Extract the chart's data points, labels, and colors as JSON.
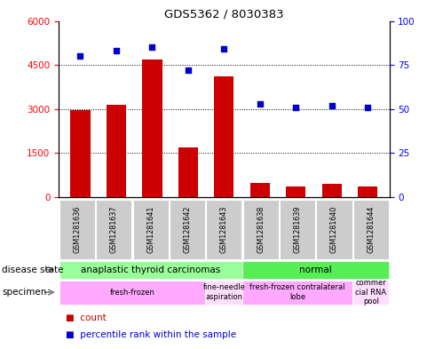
{
  "title": "GDS5362 / 8030383",
  "samples": [
    "GSM1281636",
    "GSM1281637",
    "GSM1281641",
    "GSM1281642",
    "GSM1281643",
    "GSM1281638",
    "GSM1281639",
    "GSM1281640",
    "GSM1281644"
  ],
  "counts": [
    2950,
    3150,
    4700,
    1700,
    4100,
    500,
    350,
    450,
    350
  ],
  "percentiles": [
    80,
    83,
    85,
    72,
    84,
    53,
    51,
    52,
    51
  ],
  "ylim_left": [
    0,
    6000
  ],
  "ylim_right": [
    0,
    100
  ],
  "yticks_left": [
    0,
    1500,
    3000,
    4500,
    6000
  ],
  "yticks_right": [
    0,
    25,
    50,
    75,
    100
  ],
  "bar_color": "#cc0000",
  "dot_color": "#0000cc",
  "disease_state_groups": [
    {
      "label": "anaplastic thyroid carcinomas",
      "start": 0,
      "end": 5,
      "color": "#99ff99"
    },
    {
      "label": "normal",
      "start": 5,
      "end": 9,
      "color": "#55ee55"
    }
  ],
  "specimen_groups": [
    {
      "label": "fresh-frozen",
      "start": 0,
      "end": 4,
      "color": "#ffaaff"
    },
    {
      "label": "fine-needle\naspiration",
      "start": 4,
      "end": 5,
      "color": "#ffddff"
    },
    {
      "label": "fresh-frozen contralateral\nlobe",
      "start": 5,
      "end": 8,
      "color": "#ffaaff"
    },
    {
      "label": "commer\ncial RNA\npool",
      "start": 8,
      "end": 9,
      "color": "#ffddff"
    }
  ],
  "disease_state_label": "disease state",
  "specimen_label": "specimen",
  "legend_count_label": "count",
  "legend_percentile_label": "percentile rank within the sample",
  "sample_box_color": "#cccccc",
  "background_color": "#ffffff"
}
